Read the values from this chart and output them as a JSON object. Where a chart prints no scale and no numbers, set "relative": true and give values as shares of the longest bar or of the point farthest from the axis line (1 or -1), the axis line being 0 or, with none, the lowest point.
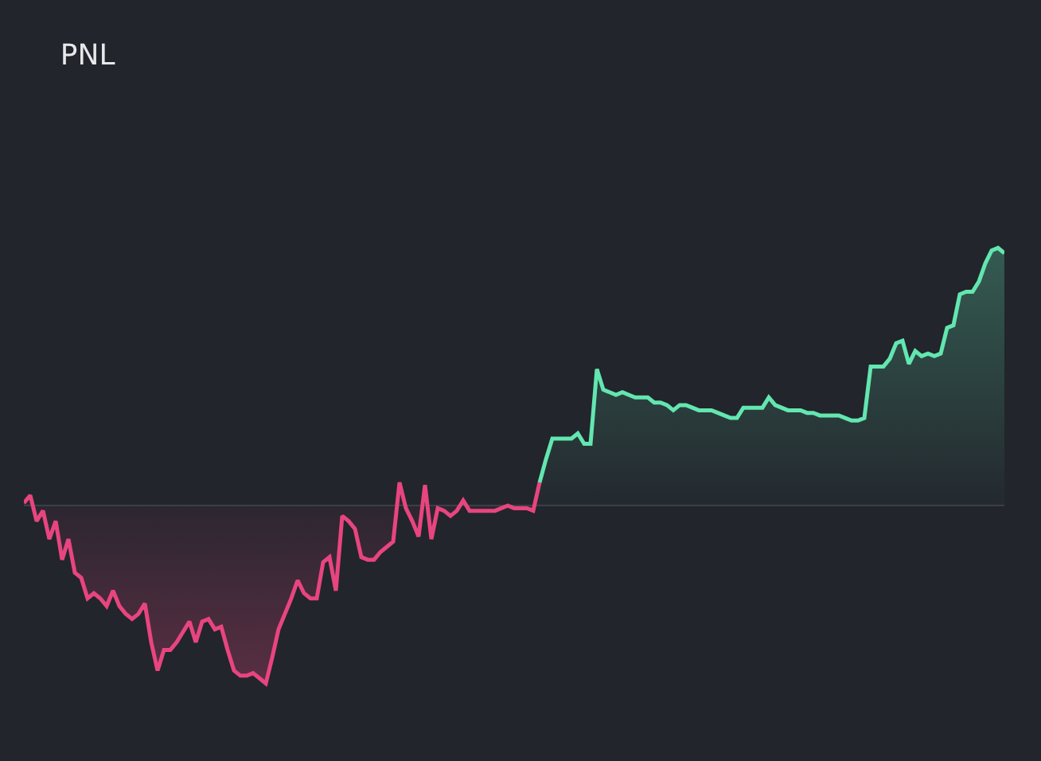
{
  "chart_data": {
    "type": "area",
    "title": "PNL",
    "relative": true,
    "marker": "none",
    "line_style": "solid",
    "categories": [
      null,
      null,
      null,
      null,
      null,
      null,
      null,
      null,
      null,
      null,
      null,
      null,
      null,
      null,
      null,
      null,
      null,
      null,
      null,
      null,
      null,
      null,
      null,
      null,
      null,
      null,
      null,
      null,
      null,
      null,
      null,
      null,
      null,
      null,
      null,
      null,
      null,
      null,
      null,
      null,
      null,
      null,
      null,
      null,
      null,
      null,
      null,
      null,
      null,
      null,
      null,
      null,
      null,
      null,
      null,
      null,
      null,
      null,
      null,
      null,
      null,
      null,
      null,
      null,
      null,
      null,
      null,
      null,
      null,
      null,
      null,
      null,
      null,
      null,
      null,
      null,
      null,
      null,
      null,
      null,
      null,
      null,
      null,
      null,
      null,
      null,
      null,
      null,
      null,
      null,
      null,
      null,
      null,
      null,
      null,
      null,
      null,
      null,
      null,
      null,
      null,
      null,
      null,
      null,
      null,
      null,
      null,
      null,
      null,
      null,
      null,
      null,
      null,
      null,
      null,
      null,
      null,
      null,
      null,
      null,
      null,
      null,
      null,
      null,
      null,
      null,
      null,
      null,
      null,
      null,
      null,
      null,
      null,
      null,
      null,
      null,
      null,
      null,
      null,
      null,
      null,
      null,
      null,
      null,
      null,
      null,
      null,
      null,
      null,
      null,
      null,
      null,
      null,
      null,
      null
    ],
    "series": [
      {
        "color": "#e8457f",
        "values": [
          0.01,
          0.04,
          -0.06,
          -0.02,
          -0.13,
          -0.06,
          -0.21,
          -0.13,
          -0.26,
          -0.28,
          -0.36,
          -0.34,
          -0.36,
          -0.39,
          -0.33,
          -0.39,
          -0.42,
          -0.44,
          -0.42,
          -0.38,
          -0.53,
          -0.64,
          -0.56,
          -0.56,
          -0.53,
          -0.49,
          -0.45,
          -0.53,
          -0.45,
          -0.44,
          -0.48,
          -0.47,
          -0.56,
          -0.64,
          -0.66,
          -0.66,
          -0.65,
          -0.67,
          -0.69,
          -0.59,
          -0.48,
          -0.42,
          -0.36,
          -0.29,
          -0.34,
          -0.36,
          -0.36,
          -0.22,
          -0.2,
          -0.33,
          -0.04,
          -0.06,
          -0.09,
          -0.2,
          -0.21,
          -0.21,
          -0.18,
          -0.16,
          -0.14,
          0.09,
          -0.01,
          -0.06,
          -0.12,
          0.08,
          -0.13,
          -0.01,
          -0.02,
          -0.04,
          -0.02,
          0.02,
          -0.02,
          -0.02,
          -0.02,
          -0.02,
          -0.02,
          -0.01,
          0,
          -0.01,
          -0.01,
          -0.01,
          -0.02,
          0.09,
          null,
          null,
          null,
          null,
          null,
          null,
          null,
          null,
          null,
          null,
          null,
          null,
          null,
          null,
          null,
          null,
          null,
          null,
          null,
          null,
          null,
          null,
          null,
          null,
          null,
          null,
          null,
          null,
          null,
          null,
          null,
          null,
          null,
          null,
          null,
          null,
          null,
          null,
          null,
          null,
          null,
          null,
          null,
          null,
          null,
          null,
          null,
          null,
          null,
          null,
          null,
          null,
          null,
          null,
          null,
          null,
          null,
          null,
          null,
          null,
          null,
          null,
          null,
          null,
          null,
          null,
          null,
          null,
          null,
          null,
          null,
          null,
          null
        ]
      },
      {
        "color": "#63e6b0",
        "values": [
          null,
          null,
          null,
          null,
          null,
          null,
          null,
          null,
          null,
          null,
          null,
          null,
          null,
          null,
          null,
          null,
          null,
          null,
          null,
          null,
          null,
          null,
          null,
          null,
          null,
          null,
          null,
          null,
          null,
          null,
          null,
          null,
          null,
          null,
          null,
          null,
          null,
          null,
          null,
          null,
          null,
          null,
          null,
          null,
          null,
          null,
          null,
          null,
          null,
          null,
          null,
          null,
          null,
          null,
          null,
          null,
          null,
          null,
          null,
          null,
          null,
          null,
          null,
          null,
          null,
          null,
          null,
          null,
          null,
          null,
          null,
          null,
          null,
          null,
          null,
          null,
          null,
          null,
          null,
          null,
          null,
          0.09,
          0.18,
          0.26,
          0.26,
          0.26,
          0.26,
          0.28,
          0.24,
          0.24,
          0.53,
          0.45,
          0.44,
          0.43,
          0.44,
          0.43,
          0.42,
          0.42,
          0.42,
          0.4,
          0.4,
          0.39,
          0.37,
          0.39,
          0.39,
          0.38,
          0.37,
          0.37,
          0.37,
          0.36,
          0.35,
          0.34,
          0.34,
          0.38,
          0.38,
          0.38,
          0.38,
          0.42,
          0.39,
          0.38,
          0.37,
          0.37,
          0.37,
          0.36,
          0.36,
          0.35,
          0.35,
          0.35,
          0.35,
          0.34,
          0.33,
          0.33,
          0.34,
          0.54,
          0.54,
          0.54,
          0.57,
          0.63,
          0.64,
          0.55,
          0.6,
          0.58,
          0.59,
          0.58,
          0.59,
          0.69,
          0.7,
          0.82,
          0.83,
          0.83,
          0.87,
          0.94,
          0.99,
          1,
          0.98
        ]
      }
    ]
  }
}
